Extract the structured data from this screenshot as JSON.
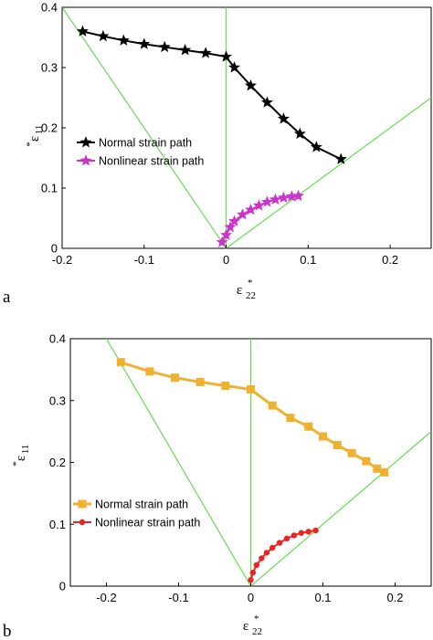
{
  "chart_data": [
    {
      "panel_label": "a",
      "type": "line",
      "xlabel": "ε",
      "xlabel_sub": "22",
      "xlabel_sup": "*",
      "ylabel": "ε",
      "ylabel_sub": "11",
      "ylabel_sup": "*",
      "xlim": [
        -0.2,
        0.25
      ],
      "ylim": [
        0,
        0.4
      ],
      "xticks": [
        -0.2,
        -0.1,
        0,
        0.1,
        0.2
      ],
      "yticks": [
        0,
        0.1,
        0.2,
        0.3,
        0.4
      ],
      "xtick_labels": [
        "-0.2",
        "-0.1",
        "0",
        "0.1",
        "0.2"
      ],
      "ytick_labels": [
        "0",
        "0.1",
        "0.2",
        "0.3",
        "0.4"
      ],
      "grid": false,
      "legend_position": "center-left",
      "series": [
        {
          "name": "Normal strain path",
          "color": "#000000",
          "marker": "star",
          "x": [
            -0.175,
            -0.15,
            -0.125,
            -0.1,
            -0.075,
            -0.05,
            -0.025,
            0,
            0.01,
            0.03,
            0.05,
            0.07,
            0.09,
            0.11,
            0.14
          ],
          "y": [
            0.36,
            0.352,
            0.345,
            0.339,
            0.334,
            0.329,
            0.324,
            0.318,
            0.3,
            0.27,
            0.242,
            0.215,
            0.19,
            0.168,
            0.148
          ]
        },
        {
          "name": "Nonlinear strain path",
          "color": "#cc33cc",
          "marker": "star",
          "x": [
            -0.005,
            0,
            0.005,
            0.01,
            0.02,
            0.03,
            0.04,
            0.05,
            0.06,
            0.07,
            0.08,
            0.088
          ],
          "y": [
            0.01,
            0.022,
            0.035,
            0.045,
            0.056,
            0.064,
            0.071,
            0.077,
            0.081,
            0.084,
            0.086,
            0.087
          ]
        }
      ],
      "guide_lines": {
        "color": "#66dd55",
        "left": {
          "x": [
            -0.2,
            0
          ],
          "y": [
            0.4,
            0
          ]
        },
        "right": {
          "x": [
            0,
            0.25
          ],
          "y": [
            0,
            0.25
          ]
        },
        "vertical": {
          "x": [
            0,
            0
          ],
          "y": [
            0,
            0.4
          ]
        }
      }
    },
    {
      "panel_label": "b",
      "type": "line",
      "xlabel": "ε",
      "xlabel_sub": "22",
      "xlabel_sup": "*",
      "ylabel": "ε",
      "ylabel_sub": "11",
      "ylabel_sup": "*",
      "xlim": [
        -0.25,
        0.25
      ],
      "ylim": [
        0,
        0.4
      ],
      "xticks": [
        -0.2,
        -0.1,
        0,
        0.1,
        0.2
      ],
      "yticks": [
        0,
        0.1,
        0.2,
        0.3,
        0.4
      ],
      "xtick_labels": [
        "-0.2",
        "-0.1",
        "0",
        "0.1",
        "0.2"
      ],
      "ytick_labels": [
        "0",
        "0.1",
        "0.2",
        "0.3",
        "0.4"
      ],
      "grid": false,
      "legend_position": "lower-left",
      "series": [
        {
          "name": "Normal strain path",
          "color": "#f0b030",
          "marker": "square",
          "x": [
            -0.18,
            -0.14,
            -0.105,
            -0.07,
            -0.035,
            0,
            0.03,
            0.055,
            0.08,
            0.1,
            0.12,
            0.14,
            0.16,
            0.175,
            0.185
          ],
          "y": [
            0.362,
            0.347,
            0.337,
            0.33,
            0.324,
            0.318,
            0.292,
            0.272,
            0.258,
            0.242,
            0.228,
            0.215,
            0.202,
            0.19,
            0.184
          ]
        },
        {
          "name": "Nonlinear strain path",
          "color": "#ee2222",
          "marker": "dot",
          "x": [
            0,
            0.003,
            0.008,
            0.015,
            0.022,
            0.03,
            0.04,
            0.05,
            0.06,
            0.07,
            0.08,
            0.09
          ],
          "y": [
            0.01,
            0.022,
            0.034,
            0.045,
            0.054,
            0.062,
            0.07,
            0.077,
            0.082,
            0.086,
            0.088,
            0.09
          ]
        }
      ],
      "guide_lines": {
        "color": "#66dd55",
        "left": {
          "x": [
            -0.2,
            0
          ],
          "y": [
            0.4,
            0
          ]
        },
        "right": {
          "x": [
            0,
            0.25
          ],
          "y": [
            0,
            0.25
          ]
        },
        "vertical": {
          "x": [
            0,
            0
          ],
          "y": [
            0,
            0.4
          ]
        }
      }
    }
  ]
}
